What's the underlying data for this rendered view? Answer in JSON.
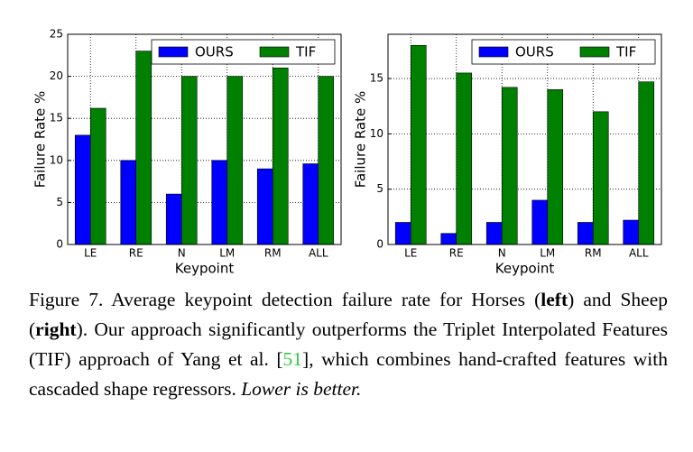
{
  "chart_data": [
    {
      "type": "bar",
      "xlabel": "Keypoint",
      "ylabel": "Failure Rate %",
      "categories": [
        "LE",
        "RE",
        "N",
        "LM",
        "RM",
        "ALL"
      ],
      "series": [
        {
          "name": "OURS",
          "color": "#0000ff",
          "values": [
            13,
            10,
            6,
            10,
            9,
            9.6
          ]
        },
        {
          "name": "TIF",
          "color": "#008000",
          "values": [
            16.2,
            23,
            20,
            20,
            21,
            20
          ]
        }
      ],
      "ylim": [
        0,
        25
      ],
      "yticks": [
        0,
        5,
        10,
        15,
        20,
        25
      ],
      "grid": true,
      "legend": "upper right"
    },
    {
      "type": "bar",
      "xlabel": "Keypoint",
      "ylabel": "Failure Rate %",
      "categories": [
        "LE",
        "RE",
        "N",
        "LM",
        "RM",
        "ALL"
      ],
      "series": [
        {
          "name": "OURS",
          "color": "#0000ff",
          "values": [
            2,
            1,
            2,
            4,
            2,
            2.2
          ]
        },
        {
          "name": "TIF",
          "color": "#008000",
          "values": [
            18,
            15.5,
            14.2,
            14,
            12,
            14.7
          ]
        }
      ],
      "ylim": [
        0,
        19
      ],
      "yticks": [
        0,
        5,
        10,
        15
      ],
      "grid": true,
      "legend": "upper right"
    }
  ],
  "caption": [
    "Figure 7. Average keypoint detection failure rate for Horses (",
    "left",
    ") and Sheep (",
    "right",
    ").  Our approach significantly outperforms the Triplet Interpolated Features (TIF) approach of Yang et al. [",
    "51",
    "], which combines hand-crafted features with cascaded shape regressors. ",
    "Lower is better."
  ]
}
